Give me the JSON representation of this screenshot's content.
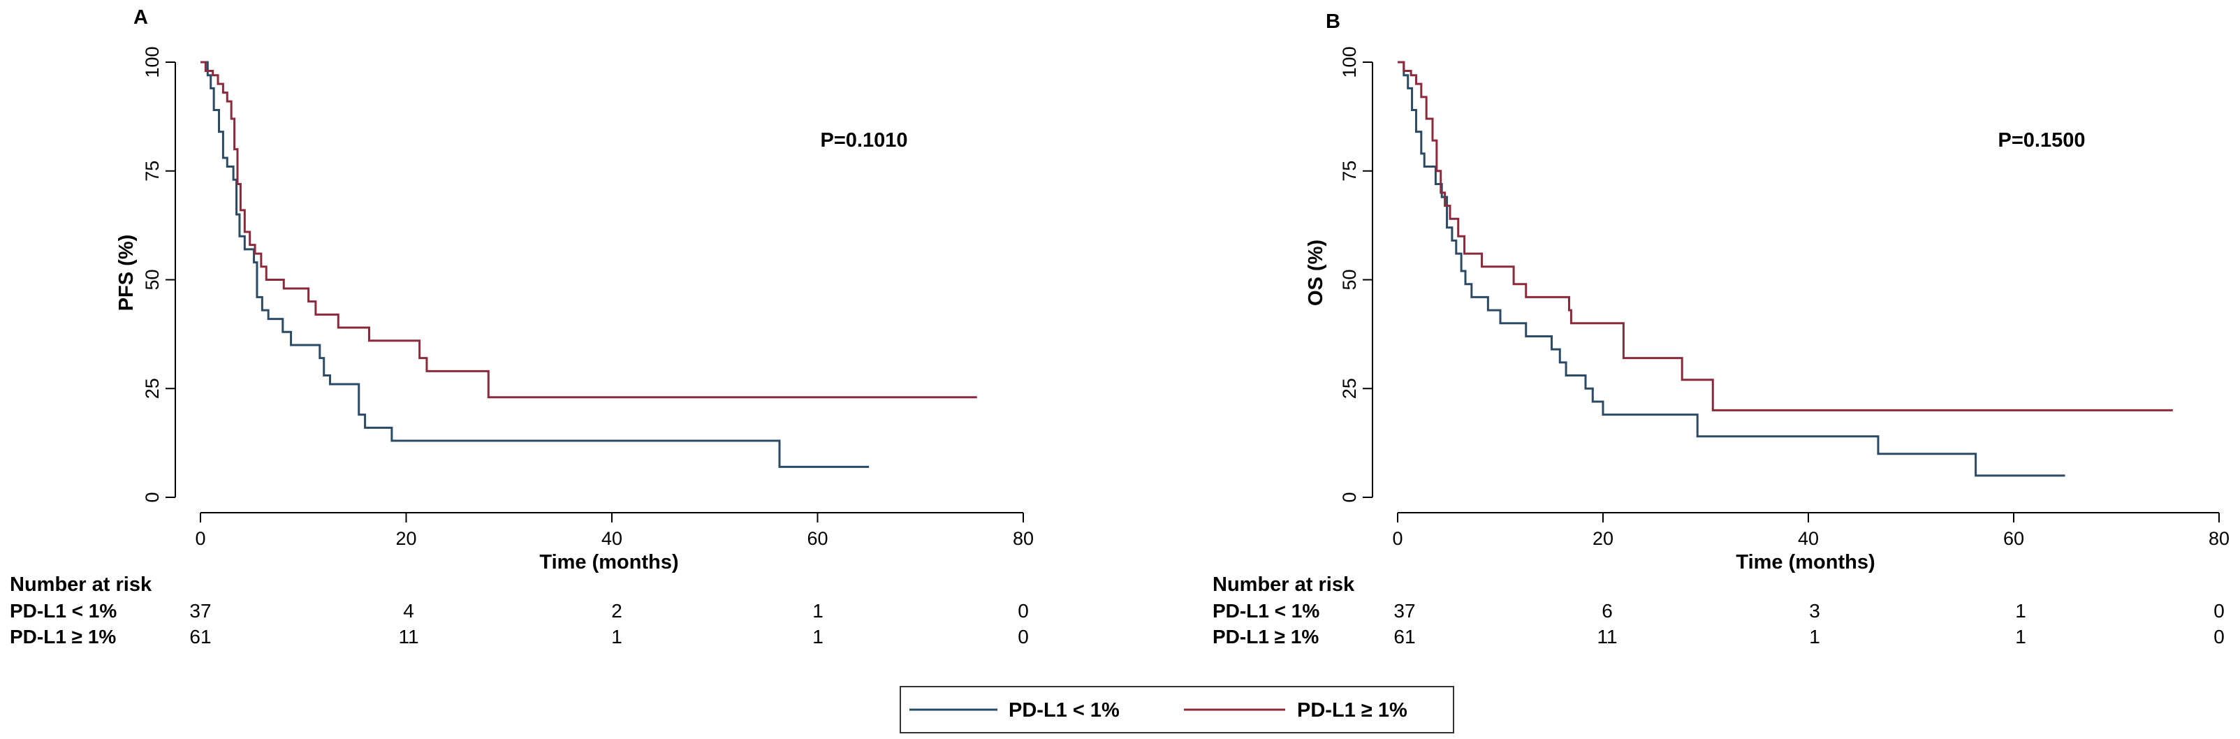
{
  "colors": {
    "low": "#2b4a66",
    "high": "#8c2a3c",
    "axis": "#000000"
  },
  "legend": [
    {
      "label": "PD-L1 < 1%",
      "color": "#2b4a66"
    },
    {
      "label": "PD-L1 ≥ 1%",
      "color": "#8c2a3c"
    }
  ],
  "chart_data": [
    {
      "type": "line",
      "panel": "A",
      "ylabel": "PFS (%)",
      "xlabel": "Time (months)",
      "xlim": [
        0,
        80
      ],
      "ylim": [
        0,
        100
      ],
      "x_ticks": [
        "0",
        "20",
        "40",
        "60",
        "80"
      ],
      "y_ticks": [
        "0",
        "25",
        "50",
        "75",
        "100"
      ],
      "p_value": "P=0.1010",
      "series": [
        {
          "name": "PD-L1 < 1%",
          "color": "#2b4a66",
          "steps": [
            [
              0,
              100
            ],
            [
              0.7,
              97
            ],
            [
              1,
              94
            ],
            [
              1.3,
              89
            ],
            [
              1.8,
              84
            ],
            [
              2.2,
              78
            ],
            [
              2.6,
              76
            ],
            [
              3.2,
              73
            ],
            [
              3.5,
              65
            ],
            [
              3.8,
              60
            ],
            [
              4.3,
              57
            ],
            [
              5.2,
              54
            ],
            [
              5.5,
              46
            ],
            [
              6,
              43
            ],
            [
              6.6,
              41
            ],
            [
              8,
              38
            ],
            [
              8.8,
              35
            ],
            [
              11.6,
              32
            ],
            [
              12,
              28
            ],
            [
              12.6,
              26
            ],
            [
              15.4,
              19
            ],
            [
              16,
              16
            ],
            [
              18.6,
              13
            ],
            [
              56.3,
              7
            ],
            [
              65,
              7
            ]
          ]
        },
        {
          "name": "PD-L1 ≥ 1%",
          "color": "#8c2a3c",
          "steps": [
            [
              0,
              100
            ],
            [
              0.5,
              98
            ],
            [
              1.2,
              97
            ],
            [
              1.7,
              95
            ],
            [
              2.2,
              93
            ],
            [
              2.6,
              91
            ],
            [
              3,
              87
            ],
            [
              3.3,
              80
            ],
            [
              3.6,
              72
            ],
            [
              3.9,
              66
            ],
            [
              4.3,
              61
            ],
            [
              4.8,
              58
            ],
            [
              5.3,
              56
            ],
            [
              5.9,
              53
            ],
            [
              6.4,
              50
            ],
            [
              8.1,
              48
            ],
            [
              10.5,
              45
            ],
            [
              11.2,
              42
            ],
            [
              13.4,
              39
            ],
            [
              16.4,
              36
            ],
            [
              21.3,
              32
            ],
            [
              22,
              29
            ],
            [
              28,
              23
            ],
            [
              75.5,
              23
            ]
          ]
        }
      ],
      "risk_table": {
        "title": "Number at risk",
        "rows": [
          {
            "label": "PD-L1 < 1%",
            "values": [
              "37",
              "4",
              "2",
              "1",
              "0"
            ]
          },
          {
            "label": "PD-L1 ≥ 1%",
            "values": [
              "61",
              "11",
              "1",
              "1",
              "0"
            ]
          }
        ]
      }
    },
    {
      "type": "line",
      "panel": "B",
      "ylabel": "OS (%)",
      "xlabel": "Time (months)",
      "xlim": [
        0,
        80
      ],
      "ylim": [
        0,
        100
      ],
      "x_ticks": [
        "0",
        "20",
        "40",
        "60",
        "80"
      ],
      "y_ticks": [
        "0",
        "25",
        "50",
        "75",
        "100"
      ],
      "p_value": "P=0.1500",
      "series": [
        {
          "name": "PD-L1 < 1%",
          "color": "#2b4a66",
          "steps": [
            [
              0,
              100
            ],
            [
              0.6,
              97
            ],
            [
              1,
              94
            ],
            [
              1.4,
              89
            ],
            [
              1.8,
              84
            ],
            [
              2.3,
              79
            ],
            [
              2.6,
              76
            ],
            [
              3.7,
              72
            ],
            [
              4.3,
              69
            ],
            [
              4.8,
              62
            ],
            [
              5.3,
              59
            ],
            [
              5.7,
              56
            ],
            [
              6.2,
              52
            ],
            [
              6.6,
              49
            ],
            [
              7.2,
              46
            ],
            [
              8.8,
              43
            ],
            [
              10,
              40
            ],
            [
              12.5,
              37
            ],
            [
              15,
              34
            ],
            [
              15.8,
              31
            ],
            [
              16.4,
              28
            ],
            [
              18.3,
              25
            ],
            [
              19,
              22
            ],
            [
              20,
              19
            ],
            [
              29.2,
              14
            ],
            [
              46.8,
              10
            ],
            [
              56.3,
              5
            ],
            [
              65,
              5
            ]
          ]
        },
        {
          "name": "PD-L1 ≥ 1%",
          "color": "#8c2a3c",
          "steps": [
            [
              0,
              100
            ],
            [
              0.6,
              98
            ],
            [
              1.3,
              97
            ],
            [
              1.8,
              95
            ],
            [
              2.3,
              92
            ],
            [
              2.8,
              87
            ],
            [
              3.4,
              82
            ],
            [
              3.8,
              75
            ],
            [
              4.2,
              70
            ],
            [
              4.6,
              67
            ],
            [
              5.1,
              64
            ],
            [
              5.9,
              60
            ],
            [
              6.5,
              56
            ],
            [
              8.2,
              53
            ],
            [
              11.3,
              49
            ],
            [
              12.5,
              46
            ],
            [
              16.7,
              43
            ],
            [
              16.9,
              40
            ],
            [
              22,
              32
            ],
            [
              27.7,
              27
            ],
            [
              30.7,
              20
            ],
            [
              75.5,
              20
            ]
          ]
        }
      ],
      "risk_table": {
        "title": "Number at risk",
        "rows": [
          {
            "label": "PD-L1 < 1%",
            "values": [
              "37",
              "6",
              "3",
              "1",
              "0"
            ]
          },
          {
            "label": "PD-L1 ≥ 1%",
            "values": [
              "61",
              "11",
              "1",
              "1",
              "0"
            ]
          }
        ]
      }
    }
  ]
}
